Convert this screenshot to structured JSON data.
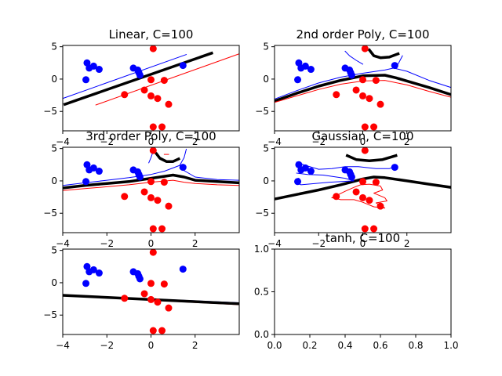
{
  "chart_data": [
    {
      "type": "scatter",
      "title": "Linear, C=100",
      "xlim": [
        -4,
        4
      ],
      "ylim": [
        -8,
        5.2
      ],
      "xticks": [
        -4,
        -2,
        0,
        2
      ],
      "yticks": [
        5,
        0,
        -5
      ],
      "show_xticks": true,
      "points_blue": [
        [
          -2.9,
          2.5
        ],
        [
          -2.8,
          1.7
        ],
        [
          -2.6,
          2.0
        ],
        [
          -2.35,
          1.5
        ],
        [
          -2.95,
          -0.1
        ],
        [
          -0.8,
          1.7
        ],
        [
          -0.6,
          1.4
        ],
        [
          -0.55,
          1.0
        ],
        [
          -0.5,
          0.6
        ],
        [
          1.45,
          2.1
        ]
      ],
      "points_red": [
        [
          0.1,
          4.7
        ],
        [
          0.0,
          -0.1
        ],
        [
          0.6,
          -0.2
        ],
        [
          -0.3,
          -1.7
        ],
        [
          -1.2,
          -2.4
        ],
        [
          0.0,
          -2.6
        ],
        [
          0.3,
          -3.0
        ],
        [
          0.8,
          -3.9
        ],
        [
          0.1,
          -7.4
        ],
        [
          0.5,
          -7.4
        ]
      ],
      "lines": [
        {
          "color": "#000000",
          "width": 3.5,
          "points": [
            [
              -3.9,
              -3.9
            ],
            [
              2.75,
              4.0
            ]
          ]
        },
        {
          "color": "#0000ff",
          "width": 1,
          "points": [
            [
              -4.0,
              -3.0
            ],
            [
              1.6,
              3.8
            ]
          ]
        },
        {
          "color": "#ff0000",
          "width": 1,
          "points": [
            [
              -2.5,
              -4.0
            ],
            [
              4.0,
              3.9
            ]
          ]
        }
      ]
    },
    {
      "type": "scatter",
      "title": "2nd order Poly, C=100",
      "xlim": [
        -4,
        4
      ],
      "ylim": [
        -8,
        5.2
      ],
      "xticks": [
        -4,
        -2,
        0,
        2
      ],
      "yticks": [
        5,
        0,
        -5
      ],
      "show_xticks": true,
      "points_blue": [
        [
          -2.9,
          2.5
        ],
        [
          -2.8,
          1.7
        ],
        [
          -2.6,
          2.0
        ],
        [
          -2.35,
          1.5
        ],
        [
          -2.95,
          -0.1
        ],
        [
          -0.8,
          1.7
        ],
        [
          -0.6,
          1.4
        ],
        [
          -0.55,
          1.0
        ],
        [
          -0.5,
          0.6
        ],
        [
          1.45,
          2.1
        ]
      ],
      "points_red": [
        [
          0.1,
          4.7
        ],
        [
          0.0,
          -0.1
        ],
        [
          0.6,
          -0.2
        ],
        [
          -0.3,
          -1.7
        ],
        [
          -1.2,
          -2.4
        ],
        [
          0.0,
          -2.6
        ],
        [
          0.3,
          -3.0
        ],
        [
          0.8,
          -3.9
        ],
        [
          0.1,
          -7.4
        ],
        [
          0.5,
          -7.4
        ]
      ],
      "lines": [
        {
          "color": "#000000",
          "width": 3.5,
          "points": [
            [
              -4,
              -3.4
            ],
            [
              -3,
              -2.2
            ],
            [
              -2,
              -1.1
            ],
            [
              -1,
              -0.2
            ],
            [
              0,
              0.5
            ],
            [
              1,
              0.6
            ],
            [
              1.5,
              0.2
            ],
            [
              2,
              -0.3
            ],
            [
              3,
              -1.3
            ],
            [
              4,
              -2.4
            ]
          ]
        },
        {
          "color": "#0000ff",
          "width": 1,
          "points": [
            [
              -4,
              -3.1
            ],
            [
              -3,
              -1.8
            ],
            [
              -2,
              -0.6
            ],
            [
              -1,
              0.3
            ],
            [
              0,
              0.9
            ],
            [
              0.6,
              1.2
            ],
            [
              1,
              1.4
            ],
            [
              1.4,
              1.7
            ],
            [
              1.6,
              2.3
            ],
            [
              1.8,
              3.6
            ]
          ]
        },
        {
          "color": "#0000ff",
          "width": 1,
          "points": [
            [
              1.4,
              1.7
            ],
            [
              2,
              1.2
            ],
            [
              3,
              -0.2
            ],
            [
              4,
              -1.3
            ]
          ]
        },
        {
          "color": "#ff0000",
          "width": 1,
          "points": [
            [
              -4,
              -3.6
            ],
            [
              -3,
              -2.6
            ],
            [
              -2,
              -1.6
            ],
            [
              -1,
              -0.8
            ],
            [
              0,
              -0.3
            ],
            [
              1,
              -0.2
            ],
            [
              2,
              -0.9
            ],
            [
              3,
              -1.9
            ],
            [
              4,
              -2.8
            ]
          ]
        },
        {
          "color": "#0000ff",
          "width": 1,
          "points": [
            [
              -0.8,
              4.3
            ],
            [
              -0.6,
              3.6
            ],
            [
              -0.3,
              2.9
            ],
            [
              0.0,
              2.3
            ]
          ]
        },
        {
          "color": "#000000",
          "width": 3.5,
          "points": [
            [
              0.3,
              4.5
            ],
            [
              0.5,
              3.6
            ],
            [
              0.8,
              3.3
            ],
            [
              1.2,
              3.4
            ],
            [
              1.6,
              3.9
            ]
          ]
        }
      ]
    },
    {
      "type": "scatter",
      "title": "3rd order Poly, C=100",
      "xlim": [
        -4,
        4
      ],
      "ylim": [
        -8,
        5.2
      ],
      "xticks": [
        -4,
        -2,
        0,
        2
      ],
      "yticks": [
        5,
        0,
        -5
      ],
      "show_xticks": true,
      "points_blue": [
        [
          -2.9,
          2.5
        ],
        [
          -2.8,
          1.7
        ],
        [
          -2.6,
          2.0
        ],
        [
          -2.35,
          1.5
        ],
        [
          -2.95,
          -0.1
        ],
        [
          -0.8,
          1.7
        ],
        [
          -0.6,
          1.4
        ],
        [
          -0.55,
          1.0
        ],
        [
          -0.5,
          0.6
        ],
        [
          1.45,
          2.1
        ]
      ],
      "points_red": [
        [
          0.1,
          4.7
        ],
        [
          0.0,
          -0.1
        ],
        [
          0.6,
          -0.2
        ],
        [
          -0.3,
          -1.7
        ],
        [
          -1.2,
          -2.4
        ],
        [
          0.0,
          -2.6
        ],
        [
          0.3,
          -3.0
        ],
        [
          0.8,
          -3.9
        ],
        [
          0.1,
          -7.4
        ],
        [
          0.5,
          -7.4
        ]
      ],
      "lines": [
        {
          "color": "#000000",
          "width": 3.5,
          "points": [
            [
              -4,
              -1.1
            ],
            [
              -3,
              -0.7
            ],
            [
              -2,
              -0.4
            ],
            [
              -1,
              -0.1
            ],
            [
              0,
              0.4
            ],
            [
              1,
              0.9
            ],
            [
              1.5,
              0.6
            ],
            [
              2,
              0.1
            ],
            [
              3,
              -0.1
            ],
            [
              4,
              -0.3
            ]
          ]
        },
        {
          "color": "#0000ff",
          "width": 1,
          "points": [
            [
              -4,
              -0.7
            ],
            [
              -3,
              -0.3
            ],
            [
              -2,
              0.1
            ],
            [
              -1,
              0.5
            ],
            [
              0,
              1.0
            ],
            [
              0.6,
              1.5
            ],
            [
              1.0,
              2.0
            ],
            [
              1.3,
              2.4
            ],
            [
              1.5,
              3.6
            ],
            [
              1.6,
              4.9
            ]
          ]
        },
        {
          "color": "#0000ff",
          "width": 1,
          "points": [
            [
              1.3,
              2.0
            ],
            [
              2,
              0.6
            ],
            [
              3,
              0.2
            ],
            [
              4,
              0.1
            ]
          ]
        },
        {
          "color": "#ff0000",
          "width": 1,
          "points": [
            [
              -4,
              -1.5
            ],
            [
              -3,
              -1.2
            ],
            [
              -2,
              -0.9
            ],
            [
              -1,
              -0.6
            ],
            [
              0,
              -0.2
            ],
            [
              1,
              0.1
            ],
            [
              1.5,
              -0.2
            ],
            [
              2,
              -0.4
            ],
            [
              3,
              -0.6
            ],
            [
              4,
              -0.7
            ]
          ]
        },
        {
          "color": "#000000",
          "width": 3.5,
          "points": [
            [
              0.25,
              4.2
            ],
            [
              0.4,
              3.5
            ],
            [
              0.7,
              3.0
            ],
            [
              1.0,
              3.0
            ],
            [
              1.25,
              3.4
            ]
          ]
        },
        {
          "color": "#0000ff",
          "width": 1,
          "points": [
            [
              -0.1,
              2.8
            ],
            [
              0.0,
              3.6
            ],
            [
              0.1,
              4.6
            ]
          ]
        },
        {
          "color": "#ff0000",
          "width": 1,
          "points": [
            [
              0.6,
              4.1
            ],
            [
              0.8,
              4.1
            ]
          ]
        }
      ]
    },
    {
      "type": "scatter",
      "title": "Gaussian, C=100",
      "xlim": [
        -4,
        4
      ],
      "ylim": [
        -8,
        5.2
      ],
      "xticks": [
        -4,
        -2,
        0,
        2
      ],
      "yticks": [
        5,
        0,
        -5
      ],
      "show_xticks": true,
      "points_blue": [
        [
          -2.9,
          2.5
        ],
        [
          -2.8,
          1.7
        ],
        [
          -2.6,
          2.0
        ],
        [
          -2.35,
          1.5
        ],
        [
          -2.95,
          -0.1
        ],
        [
          -0.8,
          1.7
        ],
        [
          -0.6,
          1.4
        ],
        [
          -0.55,
          1.0
        ],
        [
          -0.5,
          0.6
        ],
        [
          1.45,
          2.1
        ]
      ],
      "points_red": [
        [
          0.1,
          4.7
        ],
        [
          0.0,
          -0.1
        ],
        [
          0.6,
          -0.2
        ],
        [
          -0.3,
          -1.7
        ],
        [
          -1.2,
          -2.4
        ],
        [
          0.0,
          -2.6
        ],
        [
          0.3,
          -3.0
        ],
        [
          0.8,
          -3.9
        ],
        [
          0.1,
          -7.4
        ],
        [
          0.5,
          -7.4
        ]
      ],
      "lines": [
        {
          "color": "#000000",
          "width": 3.5,
          "points": [
            [
              -4,
              -2.8
            ],
            [
              -3,
              -2.1
            ],
            [
              -2,
              -1.4
            ],
            [
              -1,
              -0.6
            ],
            [
              0,
              0.3
            ],
            [
              0.5,
              0.6
            ],
            [
              1,
              0.5
            ],
            [
              2,
              0.0
            ],
            [
              3,
              -0.5
            ],
            [
              4,
              -1.0
            ]
          ]
        },
        {
          "color": "#000000",
          "width": 3.5,
          "points": [
            [
              -0.7,
              3.9
            ],
            [
              -0.3,
              3.3
            ],
            [
              0.3,
              3.1
            ],
            [
              0.9,
              3.3
            ],
            [
              1.5,
              3.9
            ]
          ]
        },
        {
          "color": "#0000ff",
          "width": 1,
          "points": [
            [
              -3.0,
              2.9
            ],
            [
              -2.6,
              2.4
            ],
            [
              -2.0,
              1.8
            ],
            [
              -1.4,
              1.9
            ],
            [
              -0.8,
              2.2
            ],
            [
              -0.2,
              2.2
            ],
            [
              0.6,
              1.9
            ],
            [
              1.2,
              1.9
            ],
            [
              1.5,
              2.3
            ]
          ]
        },
        {
          "color": "#0000ff",
          "width": 1,
          "points": [
            [
              -3.0,
              1.2
            ],
            [
              -2.5,
              1.0
            ],
            [
              -1.8,
              0.9
            ],
            [
              -0.8,
              0.4
            ],
            [
              -0.4,
              0.0
            ],
            [
              -1.5,
              -0.2
            ],
            [
              -2.8,
              -0.6
            ],
            [
              -3.0,
              -0.3
            ],
            [
              -2.9,
              0.4
            ]
          ]
        },
        {
          "color": "#ff0000",
          "width": 1,
          "points": [
            [
              -1.4,
              -2.6
            ],
            [
              -0.8,
              -1.6
            ],
            [
              -0.4,
              -1.0
            ],
            [
              -0.1,
              -0.6
            ],
            [
              0.3,
              -0.5
            ],
            [
              0.8,
              -0.8
            ],
            [
              0.9,
              -1.4
            ],
            [
              0.5,
              -1.9
            ],
            [
              1.0,
              -2.6
            ],
            [
              1.1,
              -3.1
            ],
            [
              0.6,
              -3.4
            ],
            [
              1.0,
              -4.2
            ],
            [
              0.5,
              -4.0
            ],
            [
              0.0,
              -3.3
            ],
            [
              -0.4,
              -2.9
            ],
            [
              -1.0,
              -2.9
            ],
            [
              -1.4,
              -2.6
            ]
          ]
        }
      ]
    },
    {
      "type": "scatter",
      "title": "",
      "xlim": [
        -4,
        4
      ],
      "ylim": [
        -8,
        5.2
      ],
      "xticks": [
        -4,
        -2,
        0,
        2
      ],
      "yticks": [
        5,
        0,
        -5
      ],
      "show_xticks": true,
      "points_blue": [
        [
          -2.9,
          2.5
        ],
        [
          -2.8,
          1.7
        ],
        [
          -2.6,
          2.0
        ],
        [
          -2.35,
          1.5
        ],
        [
          -2.95,
          -0.1
        ],
        [
          -0.8,
          1.7
        ],
        [
          -0.6,
          1.4
        ],
        [
          -0.55,
          1.0
        ],
        [
          -0.5,
          0.6
        ],
        [
          1.45,
          2.1
        ]
      ],
      "points_red": [
        [
          0.1,
          4.7
        ],
        [
          0.0,
          -0.1
        ],
        [
          0.6,
          -0.2
        ],
        [
          -0.3,
          -1.7
        ],
        [
          -1.2,
          -2.4
        ],
        [
          0.0,
          -2.6
        ],
        [
          0.3,
          -3.0
        ],
        [
          0.8,
          -3.9
        ],
        [
          0.1,
          -7.4
        ],
        [
          0.5,
          -7.4
        ]
      ],
      "lines": [
        {
          "color": "#0000ff",
          "width": 1,
          "points": [
            [
              -4.0,
              -1.9
            ],
            [
              4.0,
              -3.1
            ]
          ]
        },
        {
          "color": "#ff0000",
          "width": 1,
          "points": [
            [
              -4.0,
              -2.0
            ],
            [
              4.0,
              -3.4
            ]
          ]
        },
        {
          "color": "#000000",
          "width": 3.5,
          "points": [
            [
              -4.0,
              -1.95
            ],
            [
              4.0,
              -3.25
            ]
          ]
        }
      ]
    },
    {
      "type": "scatter",
      "title": "tanh, C=100",
      "xlim": [
        0,
        1
      ],
      "ylim": [
        0,
        1
      ],
      "xticks": [
        0.0,
        0.2,
        0.4,
        0.6,
        0.8,
        1.0
      ],
      "yticks": [
        0.0,
        0.5,
        1.0
      ],
      "show_xticks": true,
      "points_blue": [],
      "points_red": [],
      "lines": []
    }
  ]
}
